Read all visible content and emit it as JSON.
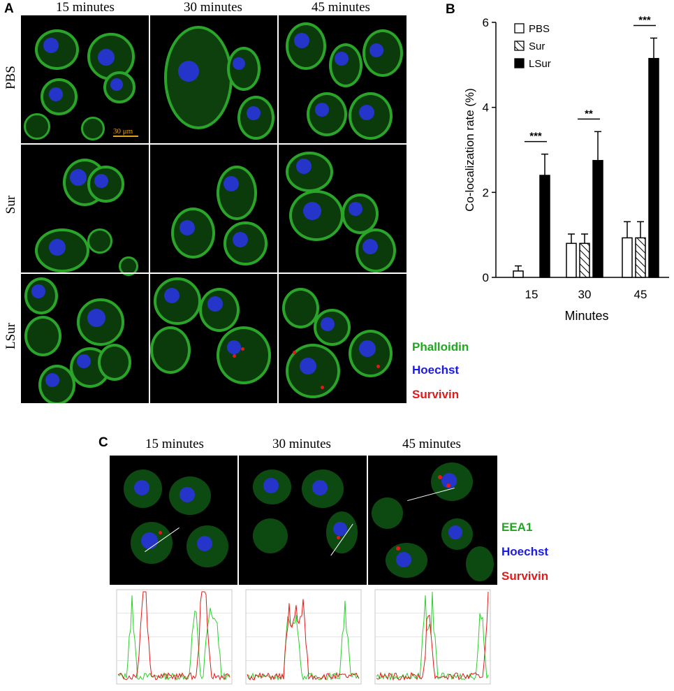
{
  "panel_a": {
    "letter": "A",
    "columns": [
      "15  minutes",
      "30 minutes",
      "45 minutes"
    ],
    "rows": [
      "PBS",
      "Sur",
      "LSur"
    ],
    "scale_bar": "30 μm",
    "stains": [
      "Phalloidin",
      "Hoechst",
      "Survivin"
    ],
    "stain_colors": [
      "#1fa81f",
      "#1a1aee",
      "#e21a1a"
    ]
  },
  "panel_b": {
    "letter": "B"
  },
  "panel_c": {
    "letter": "C",
    "columns": [
      "15  minutes",
      "30 minutes",
      "45 minutes"
    ],
    "stains": [
      "EEA1",
      "Hoechst",
      "Survivin"
    ]
  },
  "chart_data": {
    "type": "bar",
    "categories": [
      "15",
      "30",
      "45"
    ],
    "series": [
      {
        "name": "PBS",
        "values": [
          0.15,
          0.8,
          0.93
        ],
        "errors": [
          0.12,
          0.22,
          0.38
        ],
        "fill": "white"
      },
      {
        "name": "Sur",
        "values": [
          0.0,
          0.8,
          0.93
        ],
        "errors": [
          0.0,
          0.22,
          0.38
        ],
        "fill": "hatched"
      },
      {
        "name": "LSur",
        "values": [
          2.4,
          2.75,
          5.15
        ],
        "errors": [
          0.5,
          0.68,
          0.48
        ],
        "fill": "black"
      }
    ],
    "significance": [
      "***",
      "**",
      "***"
    ],
    "xlabel": "Minutes",
    "ylabel": "Co-localization rate (%)",
    "ylim": [
      0,
      6
    ],
    "yticks": [
      "0",
      "2",
      "4",
      "6"
    ],
    "legend_position": "top-left"
  }
}
